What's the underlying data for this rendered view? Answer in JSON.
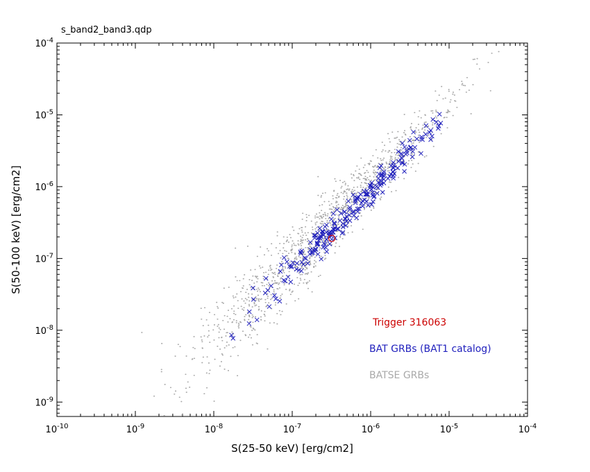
{
  "title": "s_band2_band3.qdp",
  "chart_data": {
    "type": "scatter",
    "title": "s_band2_band3.qdp",
    "xlabel": "S(25-50 keV) [erg/cm2]",
    "ylabel": "S(50-100 keV) [erg/cm2]",
    "x_scale": "log",
    "y_scale": "log",
    "xlim": [
      1e-10,
      0.0001
    ],
    "ylim": [
      6.3e-10,
      0.0001
    ],
    "x_tick_exponents": [
      -10,
      -9,
      -8,
      -7,
      -6,
      -5,
      -4
    ],
    "y_tick_exponents": [
      -9,
      -8,
      -7,
      -6,
      -5,
      -4
    ],
    "grid": false,
    "frame_color": "#000000",
    "legend_position": "lower-right-inside",
    "legend": [
      {
        "label": "Trigger 316063",
        "color": "#cc0000",
        "marker": "open-circle"
      },
      {
        "label": "BAT GRBs (BAT1 catalog)",
        "color": "#2121bd",
        "marker": "cross"
      },
      {
        "label": "BATSE GRBs",
        "color": "#a9a9a9",
        "marker": "dot"
      }
    ],
    "series": [
      {
        "name": "BATSE GRBs",
        "marker": "dot",
        "color": "#a9a9a9",
        "count": 1300,
        "seed": 20,
        "x_log_mean": -6.6,
        "x_log_sd": 0.85,
        "x_log_min": -9.55,
        "x_log_max": -4.3,
        "trend_slope": 1.1,
        "trend_intercept": 0.65,
        "scatter_dex_base": 0.2,
        "scatter_dex_slope": 0.08,
        "scatter_ref": -6.2,
        "scatter_min": 0.18,
        "scatter_max": 0.48
      },
      {
        "name": "BAT GRBs (BAT1 catalog)",
        "marker": "cross",
        "color": "#2121bd",
        "count": 240,
        "seed": 9,
        "x_log_mean": -6.3,
        "x_log_sd": 0.62,
        "x_log_min": -8.8,
        "x_log_max": -5.05,
        "trend_slope": 1.09,
        "trend_intercept": 0.47,
        "scatter_dex_base": 0.12,
        "scatter_dex_slope": 0.05,
        "scatter_ref": -6.5,
        "scatter_min": 0.1,
        "scatter_max": 0.3
      },
      {
        "name": "Trigger 316063",
        "marker": "open-circle",
        "color": "#cc0000",
        "points": [
          [
            3.2e-07,
            1.9e-07
          ]
        ]
      }
    ]
  }
}
